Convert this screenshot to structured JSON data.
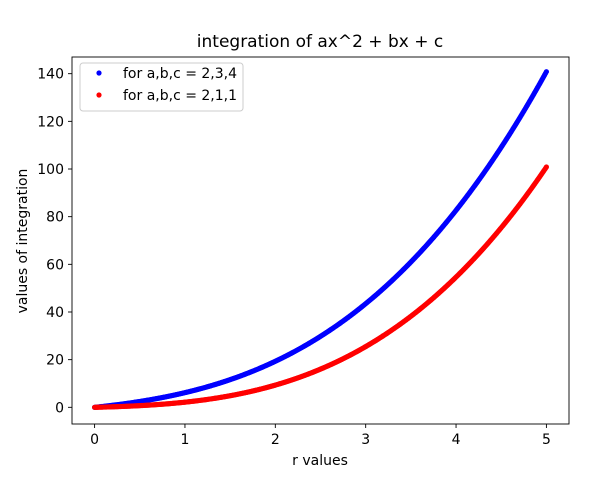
{
  "chart_data": {
    "type": "scatter",
    "title": "integration of ax^2 + bx + c",
    "xlabel": "r values",
    "ylabel": "values of integration",
    "xlim": [
      -0.25,
      5.25
    ],
    "ylim": [
      -7,
      147
    ],
    "x_ticks": [
      0,
      1,
      2,
      3,
      4,
      5
    ],
    "y_ticks": [
      0,
      20,
      40,
      60,
      80,
      100,
      120,
      140
    ],
    "x_tick_labels": [
      "0",
      "1",
      "2",
      "3",
      "4",
      "5"
    ],
    "y_tick_labels": [
      "0",
      "20",
      "40",
      "60",
      "80",
      "100",
      "120",
      "140"
    ],
    "legend_position": "top-left",
    "grid": false,
    "x_range": [
      0,
      5
    ],
    "n_points": 500,
    "series": [
      {
        "name": "for a,b,c = 2,3,4",
        "color": "#0000ff",
        "marker": "dot",
        "coefficients": {
          "a": 2,
          "b": 3,
          "c": 4
        },
        "y_end": 140
      },
      {
        "name": "for a,b,c = 2,1,1",
        "color": "#ff0000",
        "marker": "dot",
        "coefficients": {
          "a": 2,
          "b": 1,
          "c": 1
        },
        "y_end": 100
      }
    ]
  }
}
